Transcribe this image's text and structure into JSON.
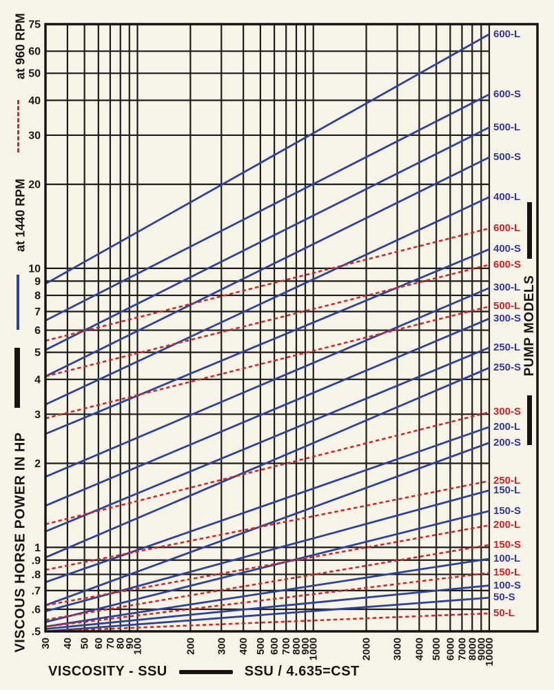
{
  "colors": {
    "background": "#f8f4e8",
    "grid": "#1c1c1c",
    "frame": "#141414",
    "curve_1440rpm_blue": "#2e4397",
    "curve_960rpm_red": "#cb2a28",
    "label_blue": "#30379a",
    "label_red": "#cd2127"
  },
  "left_legend": {
    "dashed_label": "at 960 RPM",
    "solid_label": "at 1440 RPM",
    "y_axis_title": "VISCOUS HORSE POWER IN HP"
  },
  "right_axis_title": "PUMP MODELS",
  "bottom_legend": {
    "x_axis_title": "VISCOSITY - SSU",
    "conversion_note": "SSU / 4.635=CST"
  },
  "chart_data": {
    "type": "line",
    "x_scale": "log",
    "y_scale": "log",
    "xlabel": "VISCOSITY - SSU",
    "ylabel": "VISCOUS HORSE POWER IN HP",
    "xlim": [
      30,
      10000
    ],
    "ylim": [
      0.5,
      75
    ],
    "grid": "on",
    "legend_position": "left-rotated",
    "x_ticks": [
      30,
      40,
      50,
      60,
      70,
      80,
      90,
      100,
      200,
      300,
      400,
      500,
      600,
      700,
      800,
      900,
      1000,
      2000,
      3000,
      4000,
      5000,
      6000,
      7000,
      8000,
      9000,
      10000
    ],
    "x_tick_labels": [
      "30",
      "40",
      "50",
      "60",
      "70",
      "80",
      "90",
      "100",
      "200",
      "300",
      "400",
      "500",
      "600",
      "700",
      "800",
      "900",
      "1000",
      "2000",
      "3000",
      "4000",
      "5000",
      "6000",
      "7000",
      "8000",
      "9000",
      "10000"
    ],
    "y_ticks": [
      75,
      60,
      50,
      40,
      30,
      20,
      10,
      9,
      8,
      7,
      6,
      5,
      4,
      3,
      2,
      1,
      0.9,
      0.8,
      0.7,
      0.6,
      0.5
    ],
    "y_tick_labels": [
      "75",
      "60",
      "50",
      "40",
      "30",
      "20",
      "10",
      "9",
      "8",
      "7",
      "6",
      "5",
      "4",
      "3",
      "2",
      "1",
      ".9",
      ".8",
      ".7",
      ".6",
      ".5"
    ],
    "legend": [
      {
        "label": "at 960 RPM",
        "style": "dashed",
        "color": "#cb2a28"
      },
      {
        "label": "at 1440 RPM",
        "style": "solid",
        "color": "#2e4397"
      }
    ],
    "series": [
      {
        "model": "600-L",
        "rpm": 1440,
        "hp_at_ssu30": 8.8,
        "hp_at_ssu10000": 69
      },
      {
        "model": "600-S",
        "rpm": 1440,
        "hp_at_ssu30": 6.5,
        "hp_at_ssu10000": 42
      },
      {
        "model": "500-L",
        "rpm": 1440,
        "hp_at_ssu30": 5.1,
        "hp_at_ssu10000": 32
      },
      {
        "model": "500-S",
        "rpm": 1440,
        "hp_at_ssu30": 4.1,
        "hp_at_ssu10000": 25
      },
      {
        "model": "400-L",
        "rpm": 1440,
        "hp_at_ssu30": 3.25,
        "hp_at_ssu10000": 18
      },
      {
        "model": "400-S",
        "rpm": 1440,
        "hp_at_ssu30": 2.55,
        "hp_at_ssu10000": 11.7
      },
      {
        "model": "300-L",
        "rpm": 1440,
        "hp_at_ssu30": 1.79,
        "hp_at_ssu10000": 8.5
      },
      {
        "model": "300-S",
        "rpm": 1440,
        "hp_at_ssu30": 1.41,
        "hp_at_ssu10000": 6.6
      },
      {
        "model": "250-L",
        "rpm": 1440,
        "hp_at_ssu30": 1.14,
        "hp_at_ssu10000": 5.2
      },
      {
        "model": "250-S",
        "rpm": 1440,
        "hp_at_ssu30": 0.92,
        "hp_at_ssu10000": 4.4
      },
      {
        "model": "200-L",
        "rpm": 1440,
        "hp_at_ssu30": 0.75,
        "hp_at_ssu10000": 2.7
      },
      {
        "model": "200-S",
        "rpm": 1440,
        "hp_at_ssu30": 0.62,
        "hp_at_ssu10000": 2.37
      },
      {
        "model": "150-L",
        "rpm": 1440,
        "hp_at_ssu30": 0.59,
        "hp_at_ssu10000": 1.6
      },
      {
        "model": "150-S",
        "rpm": 1440,
        "hp_at_ssu30": 0.54,
        "hp_at_ssu10000": 1.35
      },
      {
        "model": "100-L",
        "rpm": 1440,
        "hp_at_ssu30": 0.52,
        "hp_at_ssu10000": 0.91
      },
      {
        "model": "100-S",
        "rpm": 1440,
        "hp_at_ssu30": 0.51,
        "hp_at_ssu10000": 0.73
      },
      {
        "model": "50-S",
        "rpm": 1440,
        "hp_at_ssu30": 0.5,
        "hp_at_ssu10000": 0.66
      },
      {
        "model": "600-L",
        "rpm": 960,
        "hp_at_ssu30": 5.5,
        "hp_at_ssu10000": 13.9
      },
      {
        "model": "600-S",
        "rpm": 960,
        "hp_at_ssu30": 4.1,
        "hp_at_ssu10000": 10.3
      },
      {
        "model": "500-L",
        "rpm": 960,
        "hp_at_ssu30": 2.9,
        "hp_at_ssu10000": 7.3
      },
      {
        "model": "300-S",
        "rpm": 960,
        "hp_at_ssu30": 1.21,
        "hp_at_ssu10000": 3.05
      },
      {
        "model": "250-L",
        "rpm": 960,
        "hp_at_ssu30": 0.83,
        "hp_at_ssu10000": 1.73
      },
      {
        "model": "200-L",
        "rpm": 960,
        "hp_at_ssu30": 0.62,
        "hp_at_ssu10000": 1.2
      },
      {
        "model": "150-S",
        "rpm": 960,
        "hp_at_ssu30": 0.55,
        "hp_at_ssu10000": 1.02
      },
      {
        "model": "150-L",
        "rpm": 960,
        "hp_at_ssu30": 0.52,
        "hp_at_ssu10000": 0.81
      },
      {
        "model": "50-L",
        "rpm": 960,
        "hp_at_ssu30": 0.5,
        "hp_at_ssu10000": 0.58
      }
    ]
  }
}
